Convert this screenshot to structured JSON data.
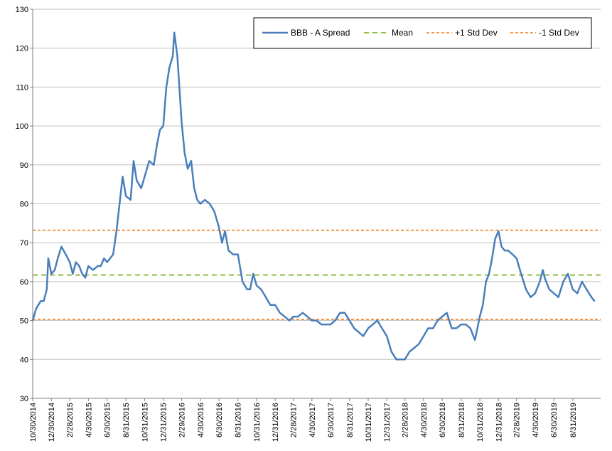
{
  "colors": {
    "series": "#4a7ebb",
    "mean": "#8fc045",
    "std": "#f79646",
    "grid": "#bfbfbf",
    "axis": "#7f7f7f"
  },
  "legend": {
    "series": "BBB - A Spread",
    "mean": "Mean",
    "plus_std": "+1 Std Dev",
    "minus_std": "-1 Std Dev",
    "position": "top-right"
  },
  "chart_data": {
    "type": "line",
    "title": "",
    "xlabel": "",
    "ylabel": "",
    "ylim": [
      30,
      130
    ],
    "xlim": [
      "10/30/2014",
      "11/30/2019"
    ],
    "grid": "horizontal",
    "yticks": [
      30,
      40,
      50,
      60,
      70,
      80,
      90,
      100,
      110,
      120,
      130
    ],
    "xticks": [
      "10/30/2014",
      "12/30/2014",
      "2/28/2015",
      "4/30/2015",
      "6/30/2015",
      "8/31/2015",
      "10/31/2015",
      "12/31/2015",
      "2/29/2016",
      "4/30/2016",
      "6/30/2016",
      "8/31/2016",
      "10/31/2016",
      "12/31/2016",
      "2/28/2017",
      "4/30/2017",
      "6/30/2017",
      "8/31/2017",
      "10/31/2017",
      "12/31/2017",
      "2/28/2018",
      "4/30/2018",
      "6/30/2018",
      "8/31/2018",
      "10/31/2018",
      "12/31/2018",
      "2/28/2019",
      "4/30/2019",
      "6/30/2019",
      "8/31/2019"
    ],
    "reference_lines": [
      {
        "name": "Mean",
        "value": 61.7,
        "style": "dashed"
      },
      {
        "name": "+1 Std Dev",
        "value": 73.2,
        "style": "dashed"
      },
      {
        "name": "-1 Std Dev",
        "value": 50.3,
        "style": "dashed"
      }
    ],
    "series": [
      {
        "name": "BBB - A Spread",
        "points": [
          [
            "10/30/2014",
            50
          ],
          [
            "11/10/2014",
            53
          ],
          [
            "11/25/2014",
            55
          ],
          [
            "12/5/2014",
            55
          ],
          [
            "12/15/2014",
            58
          ],
          [
            "12/20/2014",
            66
          ],
          [
            "12/30/2014",
            62
          ],
          [
            "1/10/2015",
            63
          ],
          [
            "1/20/2015",
            66
          ],
          [
            "2/1/2015",
            69
          ],
          [
            "2/15/2015",
            67
          ],
          [
            "2/28/2015",
            65
          ],
          [
            "3/10/2015",
            62
          ],
          [
            "3/20/2015",
            65
          ],
          [
            "3/31/2015",
            64
          ],
          [
            "4/10/2015",
            62
          ],
          [
            "4/20/2015",
            61
          ],
          [
            "4/30/2015",
            64
          ],
          [
            "5/15/2015",
            63
          ],
          [
            "5/31/2015",
            64
          ],
          [
            "6/10/2015",
            64
          ],
          [
            "6/20/2015",
            66
          ],
          [
            "6/30/2015",
            65
          ],
          [
            "7/10/2015",
            66
          ],
          [
            "7/20/2015",
            67
          ],
          [
            "7/31/2015",
            73
          ],
          [
            "8/10/2015",
            80
          ],
          [
            "8/20/2015",
            87
          ],
          [
            "8/31/2015",
            82
          ],
          [
            "9/15/2015",
            81
          ],
          [
            "9/25/2015",
            91
          ],
          [
            "10/5/2015",
            86
          ],
          [
            "10/20/2015",
            84
          ],
          [
            "10/31/2015",
            87
          ],
          [
            "11/15/2015",
            91
          ],
          [
            "11/30/2015",
            90
          ],
          [
            "12/10/2015",
            95
          ],
          [
            "12/20/2015",
            99
          ],
          [
            "12/31/2015",
            100
          ],
          [
            "1/10/2016",
            110
          ],
          [
            "1/20/2016",
            115
          ],
          [
            "1/31/2016",
            118
          ],
          [
            "2/5/2016",
            124
          ],
          [
            "2/15/2016",
            118
          ],
          [
            "2/29/2016",
            101
          ],
          [
            "3/10/2016",
            93
          ],
          [
            "3/20/2016",
            89
          ],
          [
            "3/31/2016",
            91
          ],
          [
            "4/10/2016",
            84
          ],
          [
            "4/20/2016",
            81
          ],
          [
            "4/30/2016",
            80
          ],
          [
            "5/15/2016",
            81
          ],
          [
            "5/31/2016",
            80
          ],
          [
            "6/15/2016",
            78
          ],
          [
            "6/30/2016",
            74
          ],
          [
            "7/10/2016",
            70
          ],
          [
            "7/20/2016",
            73
          ],
          [
            "7/31/2016",
            68
          ],
          [
            "8/15/2016",
            67
          ],
          [
            "8/31/2016",
            67
          ],
          [
            "9/15/2016",
            60
          ],
          [
            "9/30/2016",
            58
          ],
          [
            "10/10/2016",
            58
          ],
          [
            "10/20/2016",
            62
          ],
          [
            "10/31/2016",
            59
          ],
          [
            "11/15/2016",
            58
          ],
          [
            "11/30/2016",
            56
          ],
          [
            "12/15/2016",
            54
          ],
          [
            "12/31/2016",
            54
          ],
          [
            "1/15/2017",
            52
          ],
          [
            "1/31/2017",
            51
          ],
          [
            "2/15/2017",
            50
          ],
          [
            "2/28/2017",
            51
          ],
          [
            "3/15/2017",
            51
          ],
          [
            "3/31/2017",
            52
          ],
          [
            "4/15/2017",
            51
          ],
          [
            "4/30/2017",
            50
          ],
          [
            "5/15/2017",
            50
          ],
          [
            "5/31/2017",
            49
          ],
          [
            "6/15/2017",
            49
          ],
          [
            "6/30/2017",
            49
          ],
          [
            "7/15/2017",
            50
          ],
          [
            "7/31/2017",
            52
          ],
          [
            "8/15/2017",
            52
          ],
          [
            "8/31/2017",
            50
          ],
          [
            "9/15/2017",
            48
          ],
          [
            "9/30/2017",
            47
          ],
          [
            "10/15/2017",
            46
          ],
          [
            "10/31/2017",
            48
          ],
          [
            "11/15/2017",
            49
          ],
          [
            "11/30/2017",
            50
          ],
          [
            "12/15/2017",
            48
          ],
          [
            "12/31/2017",
            46
          ],
          [
            "1/15/2018",
            42
          ],
          [
            "1/31/2018",
            40
          ],
          [
            "2/15/2018",
            40
          ],
          [
            "2/28/2018",
            40
          ],
          [
            "3/15/2018",
            42
          ],
          [
            "3/31/2018",
            43
          ],
          [
            "4/15/2018",
            44
          ],
          [
            "4/30/2018",
            46
          ],
          [
            "5/15/2018",
            48
          ],
          [
            "5/31/2018",
            48
          ],
          [
            "6/15/2018",
            50
          ],
          [
            "6/30/2018",
            51
          ],
          [
            "7/15/2018",
            52
          ],
          [
            "7/31/2018",
            48
          ],
          [
            "8/15/2018",
            48
          ],
          [
            "8/31/2018",
            49
          ],
          [
            "9/15/2018",
            49
          ],
          [
            "9/30/2018",
            48
          ],
          [
            "10/15/2018",
            45
          ],
          [
            "10/31/2018",
            51
          ],
          [
            "11/10/2018",
            54
          ],
          [
            "11/20/2018",
            60
          ],
          [
            "11/30/2018",
            62
          ],
          [
            "12/10/2018",
            66
          ],
          [
            "12/20/2018",
            71
          ],
          [
            "12/31/2018",
            73
          ],
          [
            "1/10/2019",
            69
          ],
          [
            "1/20/2019",
            68
          ],
          [
            "1/31/2019",
            68
          ],
          [
            "2/15/2019",
            67
          ],
          [
            "2/28/2019",
            66
          ],
          [
            "3/15/2019",
            62
          ],
          [
            "3/31/2019",
            58
          ],
          [
            "4/15/2019",
            56
          ],
          [
            "4/30/2019",
            57
          ],
          [
            "5/15/2019",
            60
          ],
          [
            "5/25/2019",
            63
          ],
          [
            "5/31/2019",
            61
          ],
          [
            "6/15/2019",
            58
          ],
          [
            "6/30/2019",
            57
          ],
          [
            "7/15/2019",
            56
          ],
          [
            "7/31/2019",
            60
          ],
          [
            "8/15/2019",
            62
          ],
          [
            "8/31/2019",
            58
          ],
          [
            "9/15/2019",
            57
          ],
          [
            "9/30/2019",
            60
          ],
          [
            "10/15/2019",
            58
          ],
          [
            "10/31/2019",
            56
          ],
          [
            "11/10/2019",
            55
          ]
        ]
      }
    ]
  }
}
